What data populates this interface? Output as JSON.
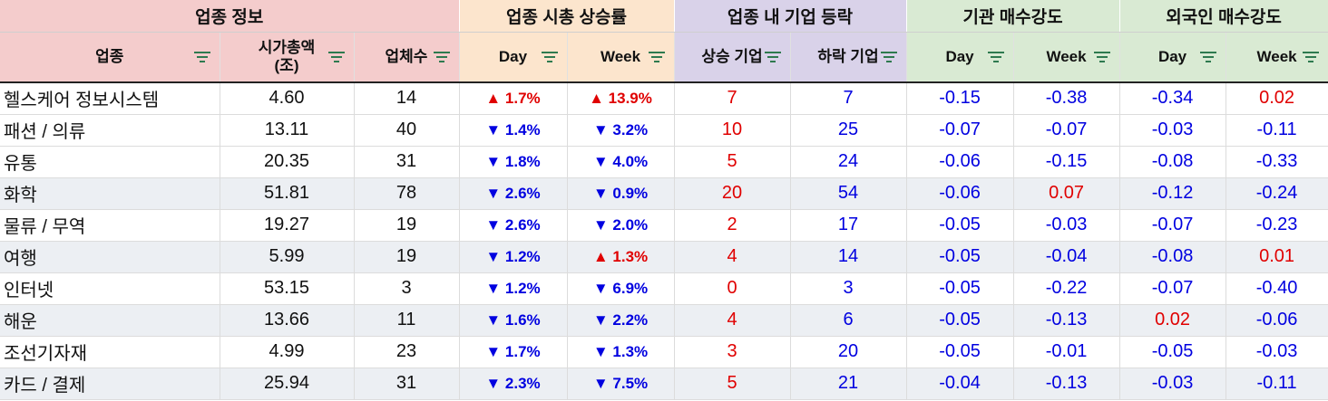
{
  "groups": {
    "info": "업종 정보",
    "cap": "업종 시총 상승률",
    "count": "업종 내 기업 등락",
    "inst": "기관 매수강도",
    "foreign": "외국인 매수강도"
  },
  "columns": {
    "sector": "업종",
    "market_cap": "시가총액\n(조)",
    "companies": "업체수",
    "cap_day": "Day",
    "cap_week": "Week",
    "rising": "상승 기업",
    "falling": "하락 기업",
    "inst_day": "Day",
    "inst_week": "Week",
    "for_day": "Day",
    "for_week": "Week"
  },
  "rows": [
    {
      "sector": "헬스케어 정보시스템",
      "market_cap": "4.60",
      "companies": "14",
      "cap_day": "▲ 1.7%",
      "cap_week": "▲ 13.9%",
      "rising": "7",
      "falling": "7",
      "inst_day": "-0.15",
      "inst_week": "-0.38",
      "for_day": "-0.34",
      "for_week": "0.02"
    },
    {
      "sector": "패션 / 의류",
      "market_cap": "13.11",
      "companies": "40",
      "cap_day": "▼ 1.4%",
      "cap_week": "▼ 3.2%",
      "rising": "10",
      "falling": "25",
      "inst_day": "-0.07",
      "inst_week": "-0.07",
      "for_day": "-0.03",
      "for_week": "-0.11"
    },
    {
      "sector": "유통",
      "market_cap": "20.35",
      "companies": "31",
      "cap_day": "▼ 1.8%",
      "cap_week": "▼ 4.0%",
      "rising": "5",
      "falling": "24",
      "inst_day": "-0.06",
      "inst_week": "-0.15",
      "for_day": "-0.08",
      "for_week": "-0.33"
    },
    {
      "sector": "화학",
      "market_cap": "51.81",
      "companies": "78",
      "cap_day": "▼ 2.6%",
      "cap_week": "▼ 0.9%",
      "rising": "20",
      "falling": "54",
      "inst_day": "-0.06",
      "inst_week": "0.07",
      "for_day": "-0.12",
      "for_week": "-0.24"
    },
    {
      "sector": "물류 / 무역",
      "market_cap": "19.27",
      "companies": "19",
      "cap_day": "▼ 2.6%",
      "cap_week": "▼ 2.0%",
      "rising": "2",
      "falling": "17",
      "inst_day": "-0.05",
      "inst_week": "-0.03",
      "for_day": "-0.07",
      "for_week": "-0.23"
    },
    {
      "sector": "여행",
      "market_cap": "5.99",
      "companies": "19",
      "cap_day": "▼ 1.2%",
      "cap_week": "▲ 1.3%",
      "rising": "4",
      "falling": "14",
      "inst_day": "-0.05",
      "inst_week": "-0.04",
      "for_day": "-0.08",
      "for_week": "0.01"
    },
    {
      "sector": "인터넷",
      "market_cap": "53.15",
      "companies": "3",
      "cap_day": "▼ 1.2%",
      "cap_week": "▼ 6.9%",
      "rising": "0",
      "falling": "3",
      "inst_day": "-0.05",
      "inst_week": "-0.22",
      "for_day": "-0.07",
      "for_week": "-0.40"
    },
    {
      "sector": "해운",
      "market_cap": "13.66",
      "companies": "11",
      "cap_day": "▼ 1.6%",
      "cap_week": "▼ 2.2%",
      "rising": "4",
      "falling": "6",
      "inst_day": "-0.05",
      "inst_week": "-0.13",
      "for_day": "0.02",
      "for_week": "-0.06"
    },
    {
      "sector": "조선기자재",
      "market_cap": "4.99",
      "companies": "23",
      "cap_day": "▼ 1.7%",
      "cap_week": "▼ 1.3%",
      "rising": "3",
      "falling": "20",
      "inst_day": "-0.05",
      "inst_week": "-0.01",
      "for_day": "-0.05",
      "for_week": "-0.03"
    },
    {
      "sector": "카드 / 결제",
      "market_cap": "25.94",
      "companies": "31",
      "cap_day": "▼ 2.3%",
      "cap_week": "▼ 7.5%",
      "rising": "5",
      "falling": "21",
      "inst_day": "-0.04",
      "inst_week": "-0.13",
      "for_day": "-0.03",
      "for_week": "-0.11"
    }
  ],
  "colors": {
    "positive": "#e00000",
    "negative": "#0000e0",
    "info_header": "#f4cccc",
    "cap_header": "#fce5cd",
    "count_header": "#d9d2e9",
    "flow_header": "#d9ead3",
    "filter_icon": "#2e7a4f"
  },
  "icons": {
    "filter": "filter-icon",
    "up": "▲",
    "down": "▼"
  }
}
